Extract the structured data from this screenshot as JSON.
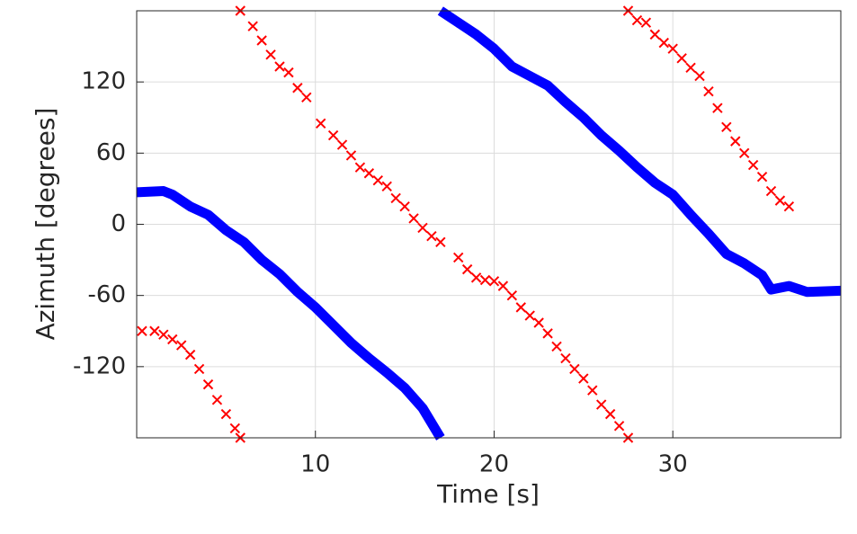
{
  "chart_data": {
    "type": "line",
    "xlabel": "Time [s]",
    "ylabel": "Azimuth [degrees]",
    "xlim": [
      0,
      39.4
    ],
    "ylim": [
      -180,
      180
    ],
    "xticks": [
      10,
      20,
      30
    ],
    "yticks": [
      -120,
      -60,
      0,
      60,
      120
    ],
    "grid": true,
    "series": [
      {
        "color": "#0000ff",
        "mode": "line",
        "x": [
          0,
          1.5,
          2,
          3,
          4,
          5,
          6,
          7,
          8,
          9,
          10,
          11,
          12,
          13,
          14,
          15,
          16,
          17,
          17,
          17,
          18,
          19,
          20,
          21,
          22,
          23,
          24,
          25,
          26,
          27,
          28,
          29,
          30,
          31,
          32,
          33,
          34,
          35,
          35.5,
          36.5,
          37.5,
          39.4
        ],
        "values": [
          27,
          28,
          25,
          15,
          8,
          -5,
          -15,
          -30,
          -42,
          -57,
          -70,
          -85,
          -100,
          -113,
          -125,
          -138,
          -155,
          -180,
          null,
          180,
          170,
          160,
          148,
          133,
          125,
          117,
          103,
          90,
          75,
          62,
          48,
          35,
          25,
          8,
          -8,
          -25,
          -33,
          -43,
          -55,
          -52,
          -57,
          -56
        ]
      },
      {
        "color": "#ff0000",
        "mode": "markers",
        "x": [
          0.3,
          1,
          1.5,
          2,
          2.5,
          3,
          3.5,
          4,
          4.5,
          5,
          5.5,
          5.8,
          5.8,
          6.5,
          7,
          7.5,
          8,
          8.5,
          9,
          9.5,
          10.3,
          11,
          11.5,
          12,
          12.5,
          13,
          13.5,
          14,
          14.5,
          15,
          15.5,
          16,
          16.5,
          17,
          18,
          18.5,
          19,
          19.5,
          20,
          20.5,
          21,
          21.5,
          22,
          22.5,
          23,
          23.5,
          24,
          24.5,
          25,
          25.5,
          26,
          26.5,
          27,
          27.5,
          27.5,
          28,
          28.5,
          29,
          29.5,
          30,
          30.5,
          31,
          31.5,
          32,
          32.5,
          33,
          33.5,
          34,
          34.5,
          35,
          35.5,
          36,
          36.5
        ],
        "values": [
          -90,
          -90,
          -93,
          -97,
          -102,
          -110,
          -122,
          -135,
          -148,
          -160,
          -172,
          -180,
          180,
          167,
          155,
          143,
          133,
          128,
          115,
          107,
          85,
          75,
          67,
          58,
          48,
          43,
          37,
          32,
          22,
          15,
          5,
          -3,
          -10,
          -15,
          -28,
          -38,
          -45,
          -47,
          -48,
          -52,
          -60,
          -70,
          -77,
          -83,
          -92,
          -103,
          -113,
          -122,
          -130,
          -140,
          -152,
          -160,
          -170,
          -180,
          180,
          172,
          170,
          160,
          153,
          148,
          140,
          132,
          125,
          112,
          98,
          82,
          70,
          60,
          50,
          40,
          28,
          20,
          15
        ]
      }
    ]
  }
}
